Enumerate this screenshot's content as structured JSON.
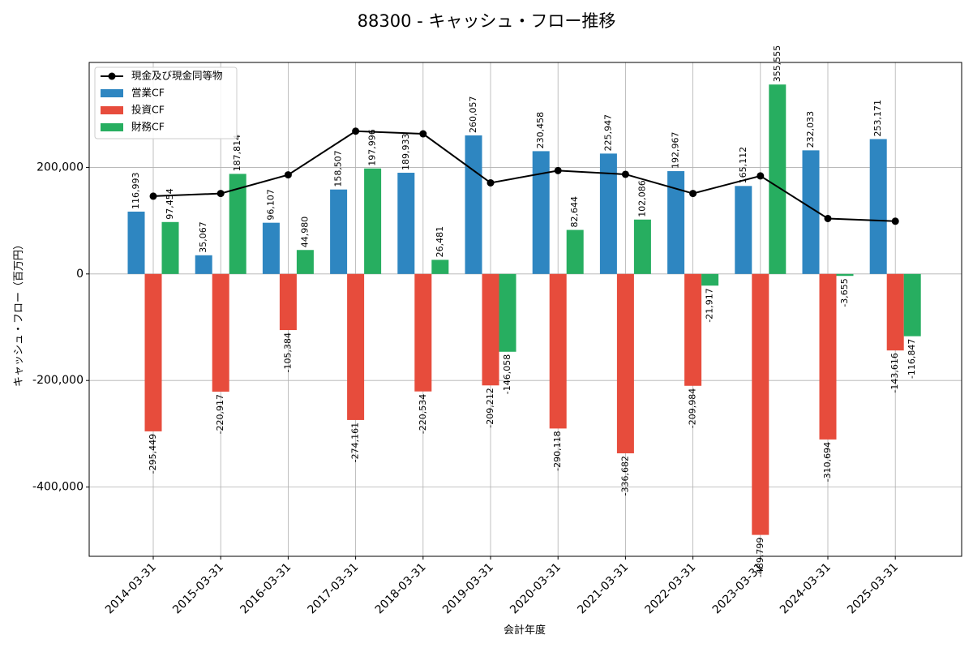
{
  "chart_data": {
    "type": "bar",
    "title": "88300 - キャッシュ・フロー推移",
    "xlabel": "会計年度",
    "ylabel": "キャッシュ・フロー（百万円）",
    "categories": [
      "2014-03-31",
      "2015-03-31",
      "2016-03-31",
      "2017-03-31",
      "2018-03-31",
      "2019-03-31",
      "2020-03-31",
      "2021-03-31",
      "2022-03-31",
      "2023-03-31",
      "2024-03-31",
      "2025-03-31"
    ],
    "ylim": [
      -530000,
      397000
    ],
    "yticks": [
      -400000,
      -200000,
      0,
      200000
    ],
    "ytick_labels": [
      "-400,000",
      "-200,000",
      "0",
      "200,000"
    ],
    "grid": true,
    "legend_position": "top-left",
    "series": [
      {
        "name": "営業CF",
        "kind": "bar",
        "color": "#2e86c1",
        "values": [
          116993,
          35067,
          96107,
          158507,
          189933,
          260057,
          230458,
          225947,
          192967,
          165112,
          232033,
          253171
        ],
        "labels": [
          "116,993",
          "35,067",
          "96,107",
          "158,507",
          "189,933",
          "260,057",
          "230,458",
          "225,947",
          "192,967",
          "165,112",
          "232,033",
          "253,171"
        ]
      },
      {
        "name": "投資CF",
        "kind": "bar",
        "color": "#e74c3c",
        "values": [
          -295449,
          -220917,
          -105384,
          -274161,
          -220534,
          -209212,
          -290118,
          -336682,
          -209984,
          -489799,
          -310694,
          -143616
        ],
        "labels": [
          "-295,449",
          "-220,917",
          "-105,384",
          "-274,161",
          "-220,534",
          "-209,212",
          "-290,118",
          "-336,682",
          "-209,984",
          "-489,799",
          "-310,694",
          "-143,616"
        ]
      },
      {
        "name": "財務CF",
        "kind": "bar",
        "color": "#27ae60",
        "values": [
          97454,
          187814,
          44980,
          197996,
          26481,
          -146058,
          82644,
          102086,
          -21917,
          355555,
          -3655,
          -116847
        ],
        "labels": [
          "97,454",
          "187,814",
          "44,980",
          "197,996",
          "26,481",
          "-146,058",
          "82,644",
          "102,086",
          "-21,917",
          "355,555",
          "-3,655",
          "-116,847"
        ]
      },
      {
        "name": "現金及び現金同等物",
        "kind": "line",
        "color": "#000000",
        "values": [
          146000,
          151000,
          186000,
          268000,
          263000,
          171000,
          194000,
          187000,
          151000,
          184000,
          104000,
          99000
        ]
      }
    ]
  }
}
